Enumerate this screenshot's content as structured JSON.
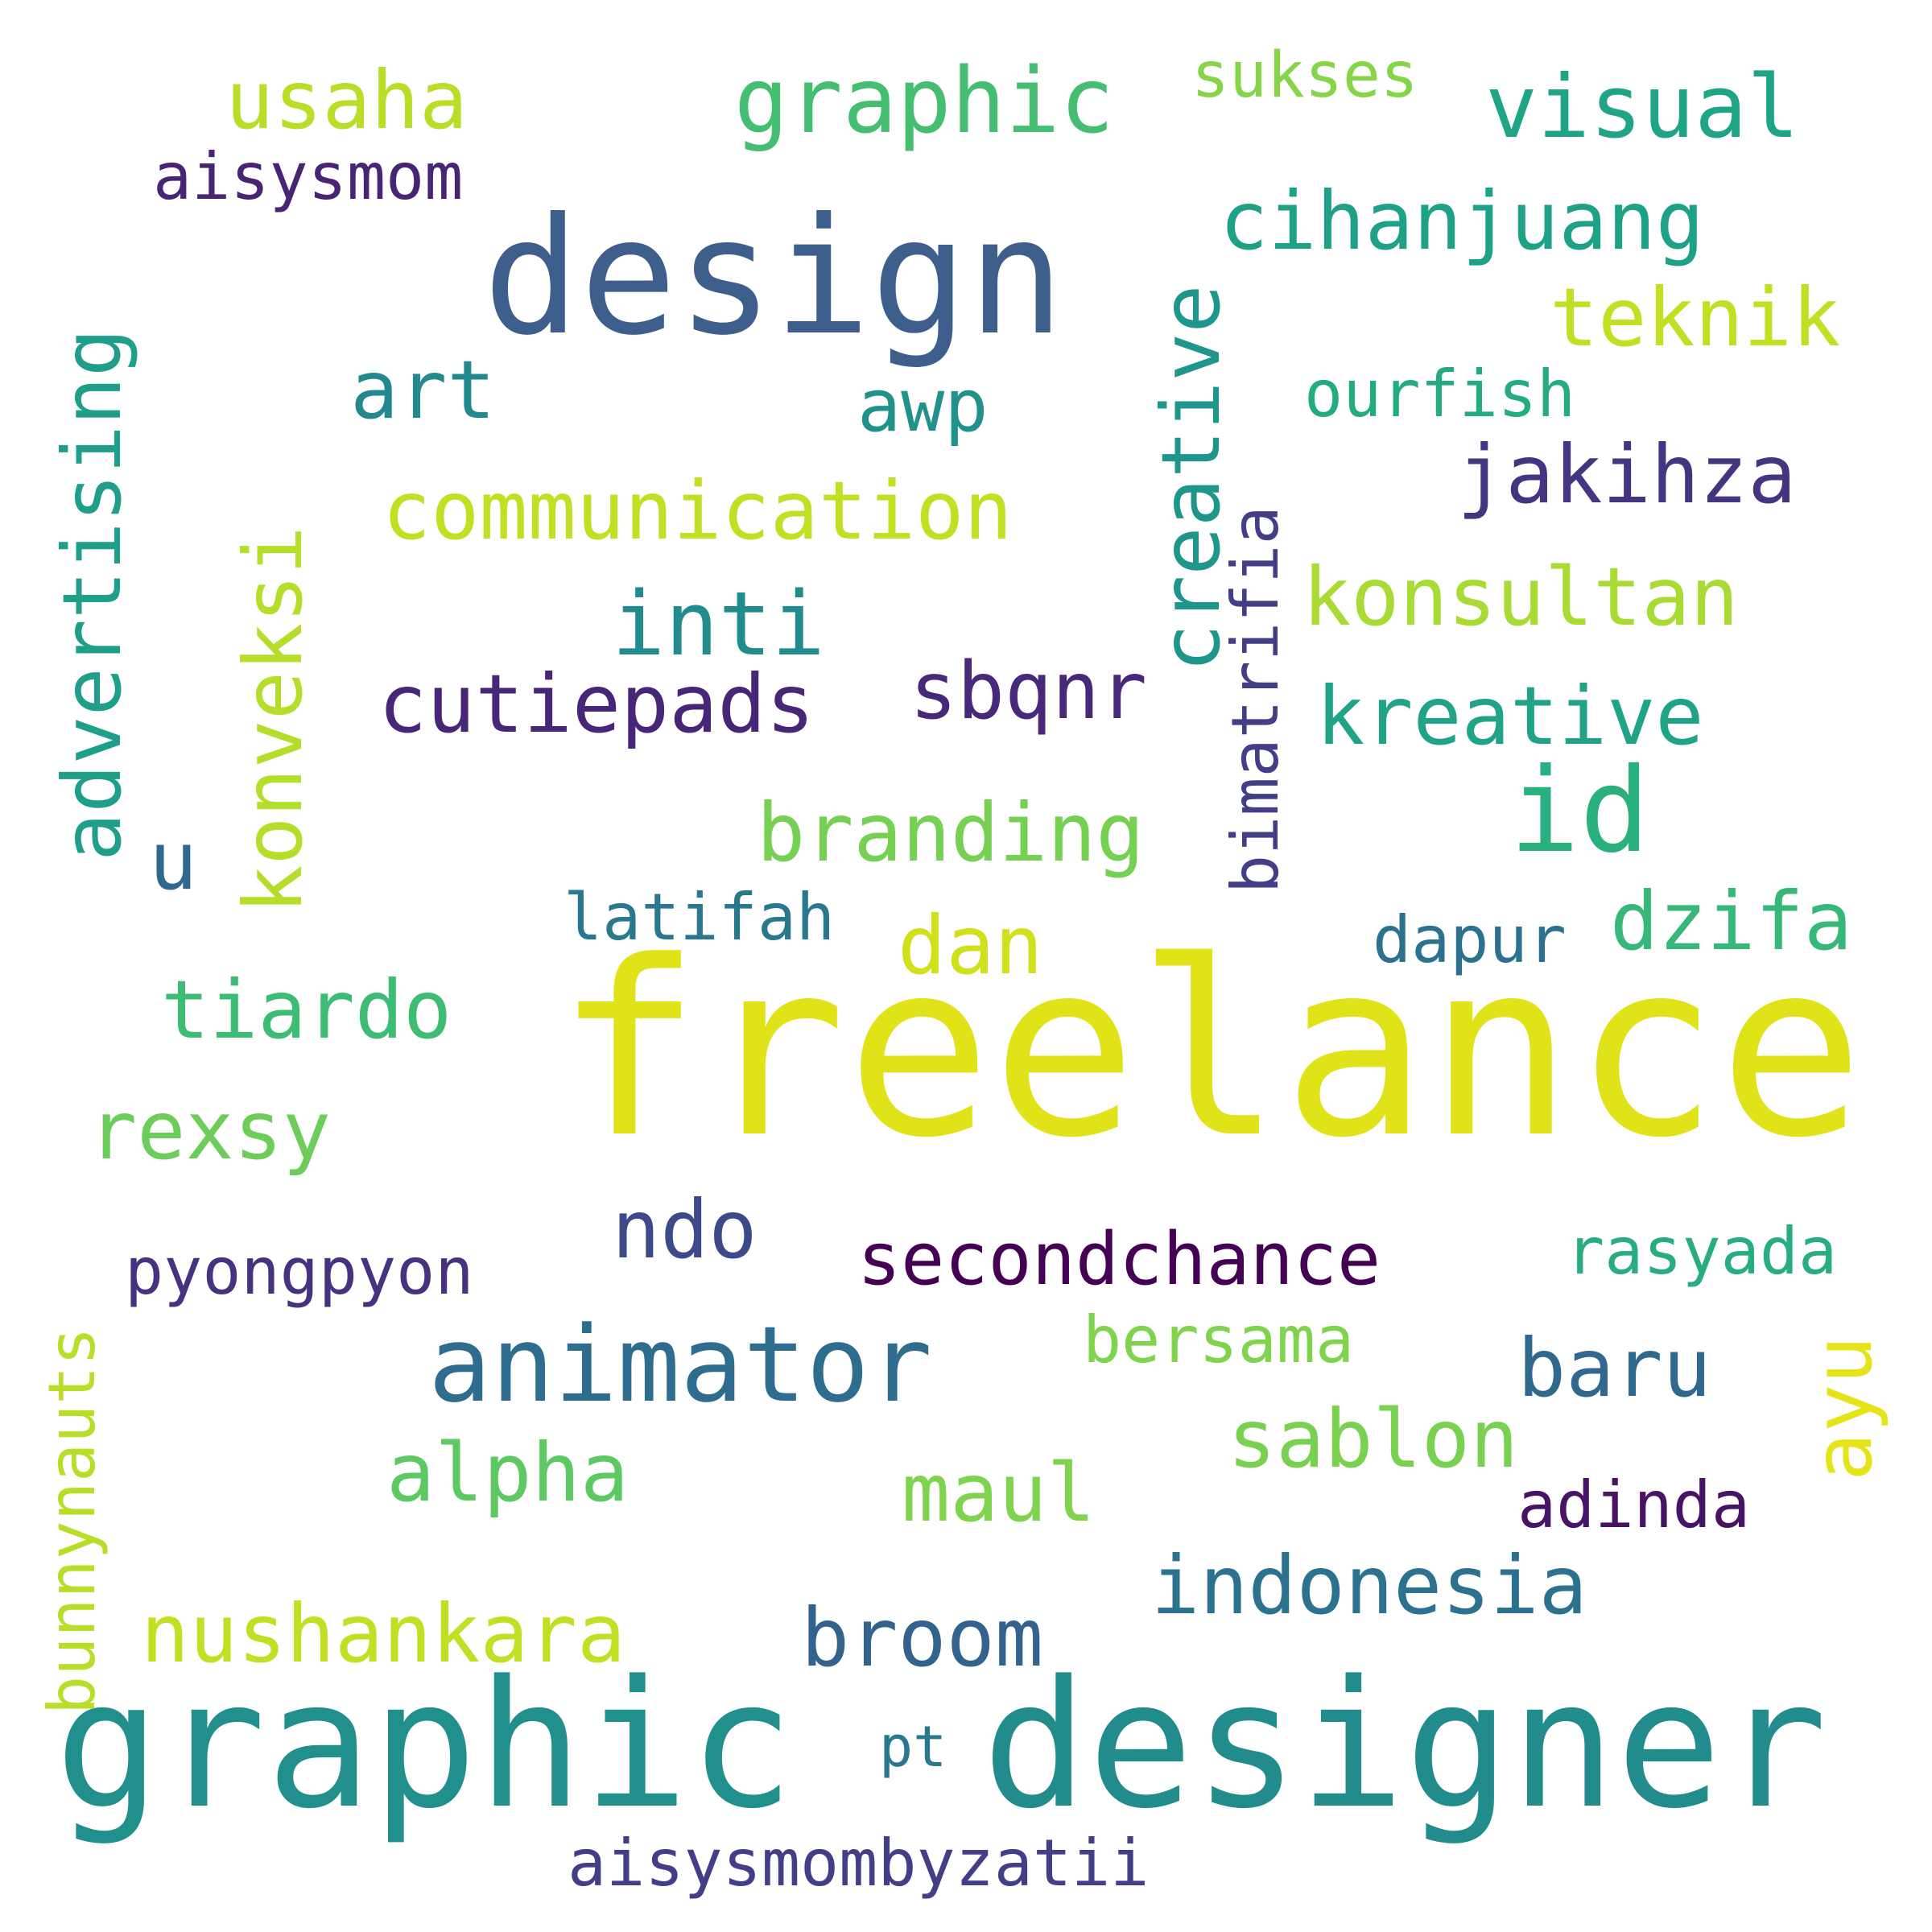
{
  "words": [
    {
      "text": "freelance",
      "color": "#dfe318"
    },
    {
      "text": "graphic",
      "color": "#21908d"
    },
    {
      "text": "designer",
      "color": "#228c8d"
    },
    {
      "text": "design",
      "color": "#3e5e8c"
    },
    {
      "text": "animator",
      "color": "#2e6d8e"
    },
    {
      "text": "id",
      "color": "#2ab07f"
    },
    {
      "text": "secondchance",
      "color": "#440154"
    },
    {
      "text": "graphic",
      "color": "#45be71"
    },
    {
      "text": "communication",
      "color": "#c2df23"
    },
    {
      "text": "cutiepads",
      "color": "#482677"
    },
    {
      "text": "usaha",
      "color": "#bade28"
    },
    {
      "text": "visual",
      "color": "#20a486"
    },
    {
      "text": "cihanjuang",
      "color": "#1fa188"
    },
    {
      "text": "teknik",
      "color": "#c2df23"
    },
    {
      "text": "jakihza",
      "color": "#453581"
    },
    {
      "text": "konsultan",
      "color": "#a8db34"
    },
    {
      "text": "kreative",
      "color": "#20a386"
    },
    {
      "text": "branding",
      "color": "#75d054"
    },
    {
      "text": "inti",
      "color": "#228b8d"
    },
    {
      "text": "sbqnr",
      "color": "#482878"
    },
    {
      "text": "art",
      "color": "#23898e"
    },
    {
      "text": "awp",
      "color": "#21918c"
    },
    {
      "text": "dzifa",
      "color": "#37b878"
    },
    {
      "text": "tiardo",
      "color": "#3dbc74"
    },
    {
      "text": "rexsy",
      "color": "#6ccd5a"
    },
    {
      "text": "dan",
      "color": "#d0e11c"
    },
    {
      "text": "latifah",
      "color": "#2a788e"
    },
    {
      "text": "dapur",
      "color": "#2c728e"
    },
    {
      "text": "ndo",
      "color": "#3e4989"
    },
    {
      "text": "pyongpyon",
      "color": "#46327e"
    },
    {
      "text": "rasyada",
      "color": "#27ad81"
    },
    {
      "text": "bersama",
      "color": "#7fd34e"
    },
    {
      "text": "baru",
      "color": "#31688e"
    },
    {
      "text": "sablon",
      "color": "#7ad151"
    },
    {
      "text": "alpha",
      "color": "#5ec962"
    },
    {
      "text": "maul",
      "color": "#7fd34e"
    },
    {
      "text": "adinda",
      "color": "#471365"
    },
    {
      "text": "indonesia",
      "color": "#2c728e"
    },
    {
      "text": "nushankara",
      "color": "#c2df23"
    },
    {
      "text": "broom",
      "color": "#33638d"
    },
    {
      "text": "pt",
      "color": "#2a788e"
    },
    {
      "text": "aisysmombyzatii",
      "color": "#433e85"
    },
    {
      "text": "aisysmom",
      "color": "#482475"
    },
    {
      "text": "sukses",
      "color": "#86d549"
    },
    {
      "text": "ourfish",
      "color": "#25ab82"
    },
    {
      "text": "u",
      "color": "#31688e"
    },
    {
      "text": "advertising",
      "color": "#1f9e89"
    },
    {
      "text": "konveksi",
      "color": "#b5de2b"
    },
    {
      "text": "creative",
      "color": "#1f968b"
    },
    {
      "text": "bimatrifia",
      "color": "#433e85"
    },
    {
      "text": "ayu",
      "color": "#e5e419"
    },
    {
      "text": "bunnynauts",
      "color": "#b8de29"
    }
  ]
}
